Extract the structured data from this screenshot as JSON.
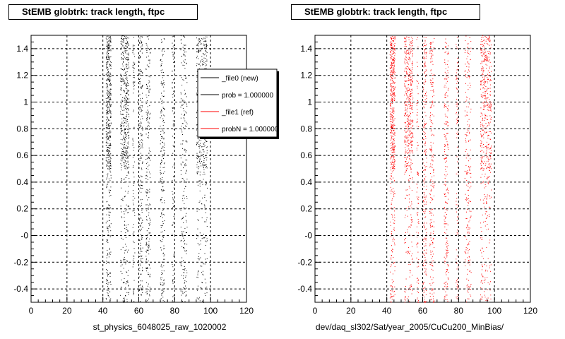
{
  "chart_data": [
    {
      "type": "scatter",
      "title": "StEMB globtrk: track length, ftpc",
      "xlabel": "st_physics_6048025_raw_1020002",
      "ylabel": "",
      "xlim": [
        0,
        120
      ],
      "ylim": [
        -0.5,
        1.5
      ],
      "xticks": [
        "0",
        "20",
        "40",
        "60",
        "80",
        "100",
        "120"
      ],
      "yticks": [
        "-0.4",
        "-0.2",
        "-0",
        "0.2",
        "0.4",
        "0.6",
        "0.8",
        "1",
        "1.2",
        "1.4"
      ],
      "grid": true,
      "legend_position": "top-right",
      "series": [
        {
          "name": "_file0 (new)",
          "color": "#000000",
          "bands": [
            {
              "x_center": 43,
              "x_width": 1.4,
              "density": "high"
            },
            {
              "x_center": 52,
              "x_width": 2.4,
              "density": "high"
            },
            {
              "x_center": 57,
              "x_width": 0.6,
              "density": "low"
            },
            {
              "x_center": 61,
              "x_width": 1.0,
              "density": "medium"
            },
            {
              "x_center": 65,
              "x_width": 1.2,
              "density": "medium"
            },
            {
              "x_center": 73,
              "x_width": 1.2,
              "density": "medium"
            },
            {
              "x_center": 79,
              "x_width": 0.6,
              "density": "low"
            },
            {
              "x_center": 85,
              "x_width": 1.8,
              "density": "medium"
            },
            {
              "x_center": 95,
              "x_width": 3.0,
              "density": "high"
            }
          ]
        },
        {
          "name": "prob = 1.000000",
          "color": "#000000"
        }
      ]
    },
    {
      "type": "scatter",
      "title": "StEMB globtrk: track length, ftpc",
      "xlabel": "dev/daq_sl302/Sat/year_2005/CuCu200_MinBias/",
      "ylabel": "",
      "xlim": [
        0,
        120
      ],
      "ylim": [
        -0.5,
        1.5
      ],
      "xticks": [
        "0",
        "20",
        "40",
        "60",
        "80",
        "100",
        "120"
      ],
      "yticks": [
        "-0.4",
        "-0.2",
        "-0",
        "0.2",
        "0.4",
        "0.6",
        "0.8",
        "1",
        "1.2",
        "1.4"
      ],
      "grid": true,
      "series": [
        {
          "name": "_file1 (ref)",
          "color": "#ff0000",
          "bands": [
            {
              "x_center": 43,
              "x_width": 1.4,
              "density": "high"
            },
            {
              "x_center": 52,
              "x_width": 2.4,
              "density": "high"
            },
            {
              "x_center": 57,
              "x_width": 0.6,
              "density": "low"
            },
            {
              "x_center": 61,
              "x_width": 1.0,
              "density": "medium"
            },
            {
              "x_center": 65,
              "x_width": 1.2,
              "density": "medium"
            },
            {
              "x_center": 73,
              "x_width": 1.2,
              "density": "medium"
            },
            {
              "x_center": 79,
              "x_width": 0.6,
              "density": "low"
            },
            {
              "x_center": 85,
              "x_width": 1.8,
              "density": "medium"
            },
            {
              "x_center": 95,
              "x_width": 3.0,
              "density": "high"
            }
          ]
        },
        {
          "name": "probN = 1.000000",
          "color": "#ff0000"
        }
      ]
    }
  ]
}
